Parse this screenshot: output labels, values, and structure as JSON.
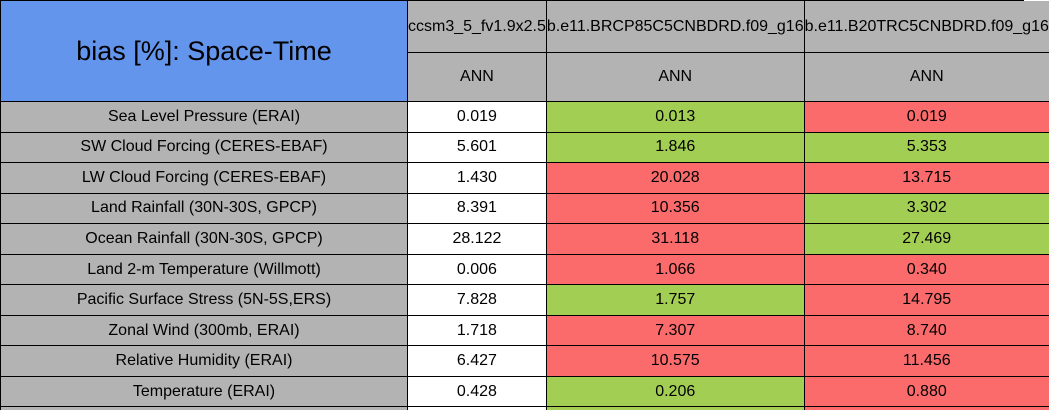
{
  "title": {
    "text": "bias [%]: Space-Time"
  },
  "header": {
    "models": [
      "ccsm3_5_fv1.9x2.5",
      "b.e11.BRCP85C5CNBDRD.f09_g16",
      "b.e11.B20TRC5CNBDRD.f09_g16"
    ],
    "season_row": [
      "ANN",
      "ANN",
      "ANN"
    ]
  },
  "colors": {
    "title_bg": "#6495ED",
    "header_bg": "#B3B3B3",
    "neutral_cell": "#FFFFFF",
    "best_cell": "#A3CE54",
    "worst_cell": "#FB6B6B",
    "border": "#000000"
  },
  "rows": [
    {
      "label": "Sea Level Pressure (ERAI)",
      "values": [
        {
          "text": "0.019",
          "bg": "#FFFFFF"
        },
        {
          "text": "0.013",
          "bg": "#A3CE54"
        },
        {
          "text": "0.019",
          "bg": "#FB6B6B"
        }
      ]
    },
    {
      "label": "SW Cloud Forcing (CERES-EBAF)",
      "values": [
        {
          "text": "5.601",
          "bg": "#FFFFFF"
        },
        {
          "text": "1.846",
          "bg": "#A3CE54"
        },
        {
          "text": "5.353",
          "bg": "#A3CE54"
        }
      ]
    },
    {
      "label": "LW Cloud Forcing (CERES-EBAF)",
      "values": [
        {
          "text": "1.430",
          "bg": "#FFFFFF"
        },
        {
          "text": "20.028",
          "bg": "#FB6B6B"
        },
        {
          "text": "13.715",
          "bg": "#FB6B6B"
        }
      ]
    },
    {
      "label": "Land Rainfall (30N-30S, GPCP)",
      "values": [
        {
          "text": "8.391",
          "bg": "#FFFFFF"
        },
        {
          "text": "10.356",
          "bg": "#FB6B6B"
        },
        {
          "text": "3.302",
          "bg": "#A3CE54"
        }
      ]
    },
    {
      "label": "Ocean Rainfall (30N-30S, GPCP)",
      "values": [
        {
          "text": "28.122",
          "bg": "#FFFFFF"
        },
        {
          "text": "31.118",
          "bg": "#FB6B6B"
        },
        {
          "text": "27.469",
          "bg": "#A3CE54"
        }
      ]
    },
    {
      "label": "Land 2-m Temperature (Willmott)",
      "values": [
        {
          "text": "0.006",
          "bg": "#FFFFFF"
        },
        {
          "text": "1.066",
          "bg": "#FB6B6B"
        },
        {
          "text": "0.340",
          "bg": "#FB6B6B"
        }
      ]
    },
    {
      "label": "Pacific Surface Stress (5N-5S,ERS)",
      "values": [
        {
          "text": "7.828",
          "bg": "#FFFFFF"
        },
        {
          "text": "1.757",
          "bg": "#A3CE54"
        },
        {
          "text": "14.795",
          "bg": "#FB6B6B"
        }
      ]
    },
    {
      "label": "Zonal Wind (300mb, ERAI)",
      "values": [
        {
          "text": "1.718",
          "bg": "#FFFFFF"
        },
        {
          "text": "7.307",
          "bg": "#FB6B6B"
        },
        {
          "text": "8.740",
          "bg": "#FB6B6B"
        }
      ]
    },
    {
      "label": "Relative Humidity (ERAI)",
      "values": [
        {
          "text": "6.427",
          "bg": "#FFFFFF"
        },
        {
          "text": "10.575",
          "bg": "#FB6B6B"
        },
        {
          "text": "11.456",
          "bg": "#FB6B6B"
        }
      ]
    },
    {
      "label": "Temperature (ERAI)",
      "values": [
        {
          "text": "0.428",
          "bg": "#FFFFFF"
        },
        {
          "text": "0.206",
          "bg": "#A3CE54"
        },
        {
          "text": "0.880",
          "bg": "#FB6B6B"
        }
      ]
    }
  ],
  "partial_row": {
    "bgs": [
      "#B3B3B3",
      "#FFFFFF",
      "#A3CE54",
      "#FB6B6B"
    ]
  },
  "chart_data": {
    "type": "table",
    "title": "bias [%]: Space-Time",
    "columns": [
      "ccsm3_5_fv1.9x2.5",
      "b.e11.BRCP85C5CNBDRD.f09_g16",
      "b.e11.B20TRC5CNBDRD.f09_g16"
    ],
    "column_subheaders": [
      "ANN",
      "ANN",
      "ANN"
    ],
    "row_labels": [
      "Sea Level Pressure (ERAI)",
      "SW Cloud Forcing (CERES-EBAF)",
      "LW Cloud Forcing (CERES-EBAF)",
      "Land Rainfall (30N-30S, GPCP)",
      "Ocean Rainfall (30N-30S, GPCP)",
      "Land 2-m Temperature (Willmott)",
      "Pacific Surface Stress (5N-5S,ERS)",
      "Zonal Wind (300mb, ERAI)",
      "Relative Humidity (ERAI)",
      "Temperature (ERAI)"
    ],
    "values": [
      [
        0.019,
        0.013,
        0.019
      ],
      [
        5.601,
        1.846,
        5.353
      ],
      [
        1.43,
        20.028,
        13.715
      ],
      [
        8.391,
        10.356,
        3.302
      ],
      [
        28.122,
        31.118,
        27.469
      ],
      [
        0.006,
        1.066,
        0.34
      ],
      [
        7.828,
        1.757,
        14.795
      ],
      [
        1.718,
        7.307,
        8.74
      ],
      [
        6.427,
        10.575,
        11.456
      ],
      [
        0.428,
        0.206,
        0.88
      ]
    ],
    "cell_highlight": [
      [
        "none",
        "green",
        "red"
      ],
      [
        "none",
        "green",
        "green"
      ],
      [
        "none",
        "red",
        "red"
      ],
      [
        "none",
        "red",
        "green"
      ],
      [
        "none",
        "red",
        "green"
      ],
      [
        "none",
        "red",
        "red"
      ],
      [
        "none",
        "green",
        "red"
      ],
      [
        "none",
        "red",
        "red"
      ],
      [
        "none",
        "red",
        "red"
      ],
      [
        "none",
        "green",
        "red"
      ]
    ]
  }
}
